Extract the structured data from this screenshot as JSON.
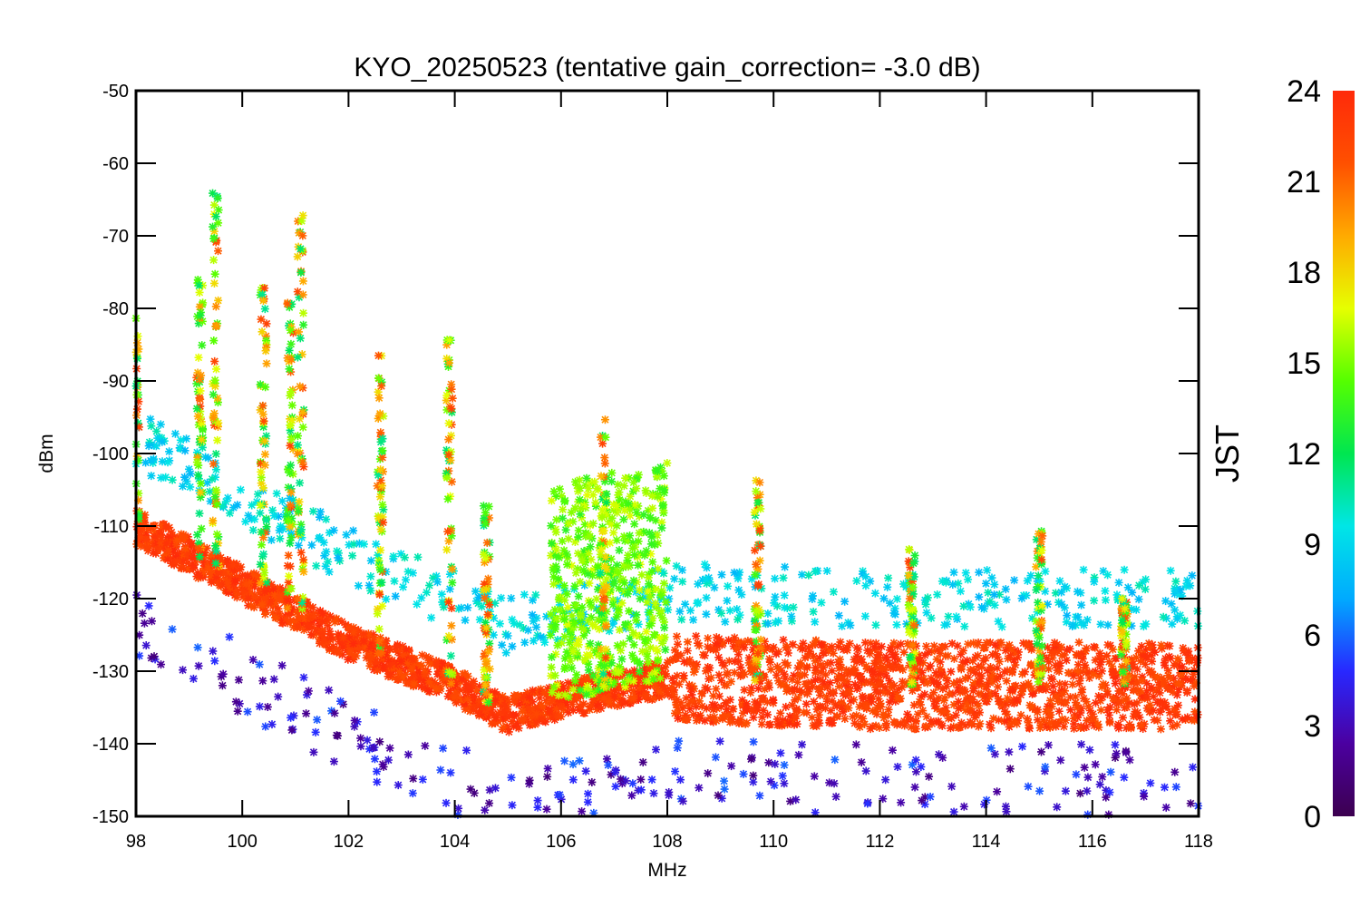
{
  "chart_data": {
    "type": "scatter",
    "title": "KYO_20250523 (tentative gain_correction= -3.0 dB)",
    "xlabel": "MHz",
    "ylabel": "dBm",
    "xlim": [
      98,
      118
    ],
    "ylim": [
      -150,
      -50
    ],
    "x_ticks": [
      98,
      100,
      102,
      104,
      106,
      108,
      110,
      112,
      114,
      116,
      118
    ],
    "y_ticks": [
      -50,
      -60,
      -70,
      -80,
      -90,
      -100,
      -110,
      -120,
      -130,
      -140,
      -150
    ],
    "x_tick_labels": [
      "98",
      "100",
      "102",
      "104",
      "106",
      "108",
      "110",
      "112",
      "114",
      "116",
      "118"
    ],
    "y_tick_labels": [
      "-50",
      "-60",
      "-70",
      "-80",
      "-90",
      "-100",
      "-110",
      "-120",
      "-130",
      "-140",
      "-150"
    ],
    "marker": "asterisk",
    "grid": false,
    "colorbar": {
      "label": "JST",
      "range": [
        0,
        24
      ],
      "ticks": [
        0,
        3,
        6,
        9,
        12,
        15,
        18,
        21,
        24
      ],
      "tick_labels": [
        "0",
        "3",
        "6",
        "9",
        "12",
        "15",
        "18",
        "21",
        "24"
      ],
      "colormap": "rainbow",
      "colors": [
        "#3c0050",
        "#4b00a0",
        "#2828ff",
        "#00aaff",
        "#00e6e6",
        "#00e650",
        "#55ff00",
        "#e6ff00",
        "#ffaa00",
        "#ff5000",
        "#ff2a0a"
      ]
    },
    "noise_floor_dBm": [
      {
        "x": 98,
        "y": -110
      },
      {
        "x": 100,
        "y": -118
      },
      {
        "x": 102,
        "y": -126
      },
      {
        "x": 104,
        "y": -132
      },
      {
        "x": 105,
        "y": -136
      },
      {
        "x": 106,
        "y": -134
      },
      {
        "x": 108,
        "y": -131
      },
      {
        "x": 112,
        "y": -132
      },
      {
        "x": 118,
        "y": -132
      }
    ],
    "peaks": [
      {
        "x": 98.0,
        "y": -80
      },
      {
        "x": 99.2,
        "y": -76
      },
      {
        "x": 99.5,
        "y": -64
      },
      {
        "x": 100.4,
        "y": -77
      },
      {
        "x": 100.9,
        "y": -79
      },
      {
        "x": 101.1,
        "y": -67
      },
      {
        "x": 102.6,
        "y": -86
      },
      {
        "x": 103.9,
        "y": -84
      },
      {
        "x": 104.6,
        "y": -107
      },
      {
        "x": 106.8,
        "y": -95
      },
      {
        "x": 109.7,
        "y": -102
      },
      {
        "x": 112.6,
        "y": -113
      },
      {
        "x": 115.0,
        "y": -110
      },
      {
        "x": 116.6,
        "y": -120
      }
    ]
  }
}
